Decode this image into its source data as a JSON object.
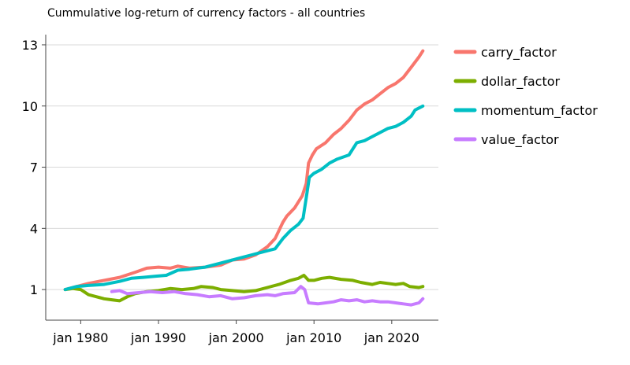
{
  "chart_data": {
    "type": "line",
    "title": "Cummulative log-return of currency factors - all countries",
    "xlabel": "",
    "ylabel": "",
    "x_ticks": [
      1980,
      1990,
      2000,
      2010,
      2020
    ],
    "x_tick_labels": [
      "jan 1980",
      "jan 1990",
      "jan 2000",
      "jan 2010",
      "jan 2020"
    ],
    "y_ticks": [
      1,
      4,
      7,
      10,
      13
    ],
    "y_tick_labels": [
      "1",
      "4",
      "7",
      "10",
      "13"
    ],
    "xlim": [
      1975.5,
      2026
    ],
    "ylim": [
      -0.5,
      13.5
    ],
    "grid": "horizontal",
    "legend_position": "right",
    "series": [
      {
        "name": "carry_factor",
        "color": "#f8766d",
        "points": [
          [
            1978.0,
            1.0
          ],
          [
            1979.5,
            1.15
          ],
          [
            1981.0,
            1.3
          ],
          [
            1983.0,
            1.45
          ],
          [
            1985.0,
            1.6
          ],
          [
            1987.0,
            1.85
          ],
          [
            1988.5,
            2.05
          ],
          [
            1990.0,
            2.1
          ],
          [
            1991.5,
            2.05
          ],
          [
            1992.5,
            2.15
          ],
          [
            1994.0,
            2.05
          ],
          [
            1996.0,
            2.1
          ],
          [
            1998.0,
            2.2
          ],
          [
            1999.5,
            2.45
          ],
          [
            2001.0,
            2.5
          ],
          [
            2002.5,
            2.7
          ],
          [
            2004.0,
            3.1
          ],
          [
            2005.0,
            3.5
          ],
          [
            2006.0,
            4.3
          ],
          [
            2006.5,
            4.6
          ],
          [
            2007.5,
            5.0
          ],
          [
            2008.5,
            5.6
          ],
          [
            2009.0,
            6.2
          ],
          [
            2009.3,
            7.2
          ],
          [
            2009.8,
            7.6
          ],
          [
            2010.3,
            7.9
          ],
          [
            2011.5,
            8.2
          ],
          [
            2012.5,
            8.6
          ],
          [
            2013.5,
            8.9
          ],
          [
            2014.5,
            9.3
          ],
          [
            2015.5,
            9.8
          ],
          [
            2016.5,
            10.1
          ],
          [
            2017.5,
            10.3
          ],
          [
            2018.5,
            10.6
          ],
          [
            2019.5,
            10.9
          ],
          [
            2020.5,
            11.1
          ],
          [
            2021.5,
            11.4
          ],
          [
            2022.5,
            11.9
          ],
          [
            2023.5,
            12.4
          ],
          [
            2024.0,
            12.7
          ]
        ]
      },
      {
        "name": "dollar_factor",
        "color": "#7cae00",
        "points": [
          [
            1978.0,
            1.0
          ],
          [
            1979.0,
            1.05
          ],
          [
            1980.0,
            1.0
          ],
          [
            1981.0,
            0.75
          ],
          [
            1982.0,
            0.65
          ],
          [
            1983.0,
            0.55
          ],
          [
            1984.0,
            0.5
          ],
          [
            1985.0,
            0.45
          ],
          [
            1986.0,
            0.65
          ],
          [
            1987.0,
            0.8
          ],
          [
            1988.5,
            0.9
          ],
          [
            1990.0,
            0.95
          ],
          [
            1991.5,
            1.05
          ],
          [
            1993.0,
            1.0
          ],
          [
            1994.5,
            1.05
          ],
          [
            1995.5,
            1.15
          ],
          [
            1997.0,
            1.1
          ],
          [
            1998.0,
            1.0
          ],
          [
            1999.5,
            0.95
          ],
          [
            2001.0,
            0.9
          ],
          [
            2002.5,
            0.95
          ],
          [
            2004.0,
            1.1
          ],
          [
            2005.5,
            1.25
          ],
          [
            2007.0,
            1.45
          ],
          [
            2008.0,
            1.55
          ],
          [
            2008.7,
            1.7
          ],
          [
            2009.3,
            1.45
          ],
          [
            2010.0,
            1.45
          ],
          [
            2011.0,
            1.55
          ],
          [
            2012.0,
            1.6
          ],
          [
            2013.5,
            1.5
          ],
          [
            2015.0,
            1.45
          ],
          [
            2016.0,
            1.35
          ],
          [
            2017.5,
            1.25
          ],
          [
            2018.5,
            1.35
          ],
          [
            2019.5,
            1.3
          ],
          [
            2020.5,
            1.25
          ],
          [
            2021.5,
            1.3
          ],
          [
            2022.3,
            1.15
          ],
          [
            2023.5,
            1.1
          ],
          [
            2024.0,
            1.15
          ]
        ]
      },
      {
        "name": "momentum_factor",
        "color": "#00bfc4",
        "points": [
          [
            1978.0,
            1.0
          ],
          [
            1979.5,
            1.15
          ],
          [
            1981.0,
            1.2
          ],
          [
            1983.0,
            1.25
          ],
          [
            1985.0,
            1.4
          ],
          [
            1986.5,
            1.55
          ],
          [
            1988.0,
            1.6
          ],
          [
            1989.5,
            1.65
          ],
          [
            1991.0,
            1.7
          ],
          [
            1992.5,
            1.95
          ],
          [
            1994.0,
            2.0
          ],
          [
            1996.0,
            2.1
          ],
          [
            1998.0,
            2.3
          ],
          [
            2000.0,
            2.5
          ],
          [
            2002.0,
            2.7
          ],
          [
            2004.0,
            2.9
          ],
          [
            2005.0,
            3.0
          ],
          [
            2006.0,
            3.5
          ],
          [
            2007.0,
            3.9
          ],
          [
            2008.0,
            4.2
          ],
          [
            2008.6,
            4.5
          ],
          [
            2009.0,
            5.5
          ],
          [
            2009.4,
            6.5
          ],
          [
            2010.0,
            6.7
          ],
          [
            2011.0,
            6.9
          ],
          [
            2012.0,
            7.2
          ],
          [
            2013.0,
            7.4
          ],
          [
            2014.5,
            7.6
          ],
          [
            2015.5,
            8.2
          ],
          [
            2016.5,
            8.3
          ],
          [
            2017.5,
            8.5
          ],
          [
            2018.5,
            8.7
          ],
          [
            2019.5,
            8.9
          ],
          [
            2020.5,
            9.0
          ],
          [
            2021.5,
            9.2
          ],
          [
            2022.5,
            9.5
          ],
          [
            2023.0,
            9.8
          ],
          [
            2024.0,
            10.0
          ]
        ]
      },
      {
        "name": "value_factor",
        "color": "#c77cff",
        "points": [
          [
            1984.0,
            0.9
          ],
          [
            1985.0,
            0.95
          ],
          [
            1986.0,
            0.8
          ],
          [
            1987.5,
            0.85
          ],
          [
            1989.0,
            0.9
          ],
          [
            1990.5,
            0.85
          ],
          [
            1992.0,
            0.9
          ],
          [
            1993.5,
            0.8
          ],
          [
            1995.0,
            0.75
          ],
          [
            1996.5,
            0.65
          ],
          [
            1998.0,
            0.7
          ],
          [
            1999.5,
            0.55
          ],
          [
            2001.0,
            0.6
          ],
          [
            2002.5,
            0.7
          ],
          [
            2004.0,
            0.75
          ],
          [
            2005.0,
            0.7
          ],
          [
            2006.0,
            0.8
          ],
          [
            2007.5,
            0.85
          ],
          [
            2008.3,
            1.15
          ],
          [
            2008.8,
            1.0
          ],
          [
            2009.3,
            0.35
          ],
          [
            2010.5,
            0.3
          ],
          [
            2011.5,
            0.35
          ],
          [
            2012.5,
            0.4
          ],
          [
            2013.5,
            0.5
          ],
          [
            2014.5,
            0.45
          ],
          [
            2015.5,
            0.5
          ],
          [
            2016.5,
            0.4
          ],
          [
            2017.5,
            0.45
          ],
          [
            2018.5,
            0.4
          ],
          [
            2019.5,
            0.4
          ],
          [
            2020.5,
            0.35
          ],
          [
            2021.5,
            0.3
          ],
          [
            2022.5,
            0.25
          ],
          [
            2023.5,
            0.35
          ],
          [
            2024.0,
            0.55
          ]
        ]
      }
    ]
  }
}
